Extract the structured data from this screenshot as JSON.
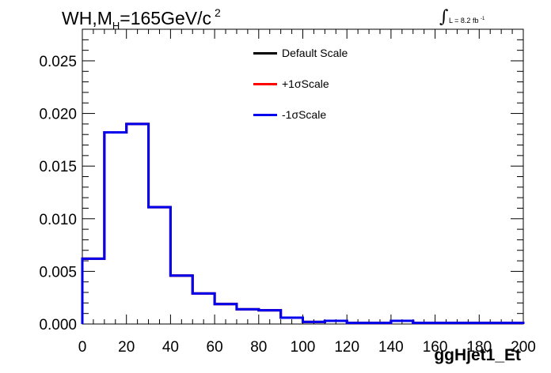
{
  "chart_data": {
    "type": "histogram",
    "title_main": "WH,M",
    "title_sub": "H",
    "title_rest": "=165GeV/c",
    "title_sup": "2",
    "lumi_text": "L = 8.2 fb",
    "lumi_sup": "-1",
    "xlabel": "ggHjet1_Et",
    "ylabel": "",
    "xlim": [
      0,
      200
    ],
    "ylim": [
      0,
      0.028
    ],
    "x_ticks": [
      "0",
      "20",
      "40",
      "60",
      "80",
      "100",
      "120",
      "140",
      "160",
      "180",
      "200"
    ],
    "y_ticks": [
      "0.000",
      "0.005",
      "0.010",
      "0.015",
      "0.020",
      "0.025"
    ],
    "bin_edges": [
      0,
      10,
      20,
      30,
      40,
      50,
      60,
      70,
      80,
      90,
      100,
      110,
      120,
      130,
      140,
      150,
      160,
      170,
      180,
      190,
      200
    ],
    "series": [
      {
        "name": "Default Scale",
        "color": "#000000",
        "values": [
          0.0062,
          0.0182,
          0.019,
          0.0111,
          0.0046,
          0.0029,
          0.0019,
          0.0014,
          0.0013,
          0.0006,
          0.0002,
          0.0003,
          0.0001,
          0.0001,
          0.0003,
          0.0001,
          0.0001,
          0.0001,
          0.0001,
          0.0001
        ]
      },
      {
        "name": "+1σScale",
        "color": "#ff0000",
        "values": [
          0.0062,
          0.0182,
          0.019,
          0.0111,
          0.0046,
          0.0029,
          0.0019,
          0.0014,
          0.0013,
          0.0006,
          0.0002,
          0.0003,
          0.0001,
          0.0001,
          0.0003,
          0.0001,
          0.0001,
          0.0001,
          0.0001,
          0.0001
        ]
      },
      {
        "name": "-1σScale",
        "color": "#0000ee",
        "values": [
          0.0062,
          0.0182,
          0.019,
          0.0111,
          0.0046,
          0.0029,
          0.0019,
          0.0014,
          0.0013,
          0.0006,
          0.0002,
          0.0003,
          0.0001,
          0.0001,
          0.0003,
          0.0001,
          0.0001,
          0.0001,
          0.0001,
          0.0001
        ]
      }
    ],
    "legend_placement": "top-center",
    "grid": false
  }
}
